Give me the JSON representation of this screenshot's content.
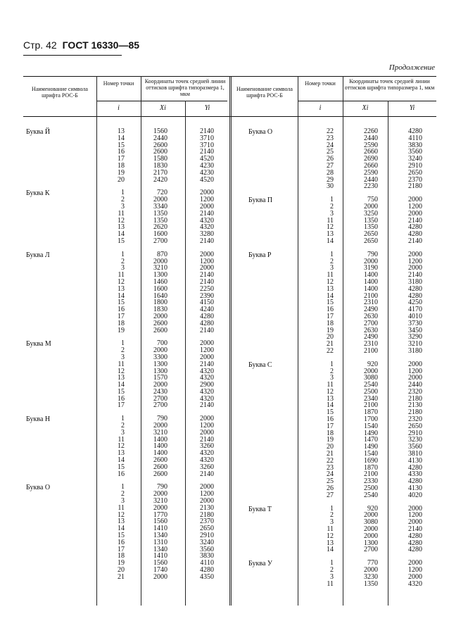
{
  "header": {
    "page": "Стр. 42",
    "standard": "ГОСТ 16330—85"
  },
  "continuation": "Продолжение",
  "table_header": {
    "name": "Наименование символа шрифта РОС-Б",
    "point_number": "Номер точки",
    "coords": "Координаты точек средней линии оттисков шрифта типоразмера 1, мкм",
    "i": "i",
    "x": "Xi",
    "y": "Yi"
  },
  "left_sections": [
    {
      "name": "Буква Й",
      "rows": [
        [
          "13",
          "1560",
          "2140"
        ],
        [
          "14",
          "2440",
          "3710"
        ],
        [
          "15",
          "2600",
          "3710"
        ],
        [
          "16",
          "2600",
          "2140"
        ],
        [
          "17",
          "1580",
          "4520"
        ],
        [
          "18",
          "1830",
          "4230"
        ],
        [
          "19",
          "2170",
          "4230"
        ],
        [
          "20",
          "2420",
          "4520"
        ]
      ]
    },
    {
      "name": "Буква К",
      "rows": [
        [
          "1",
          "720",
          "2000"
        ],
        [
          "2",
          "2000",
          "1200"
        ],
        [
          "3",
          "3340",
          "2000"
        ],
        [
          "11",
          "1350",
          "2140"
        ],
        [
          "12",
          "1350",
          "4320"
        ],
        [
          "13",
          "2620",
          "4320"
        ],
        [
          "14",
          "1600",
          "3280"
        ],
        [
          "15",
          "2700",
          "2140"
        ]
      ]
    },
    {
      "name": "Буква Л",
      "rows": [
        [
          "1",
          "870",
          "2000"
        ],
        [
          "2",
          "2000",
          "1200"
        ],
        [
          "3",
          "3210",
          "2000"
        ],
        [
          "11",
          "1300",
          "2140"
        ],
        [
          "12",
          "1460",
          "2140"
        ],
        [
          "13",
          "1600",
          "2250"
        ],
        [
          "14",
          "1640",
          "2390"
        ],
        [
          "15",
          "1800",
          "4150"
        ],
        [
          "16",
          "1830",
          "4240"
        ],
        [
          "17",
          "2000",
          "4280"
        ],
        [
          "18",
          "2600",
          "4280"
        ],
        [
          "19",
          "2600",
          "2140"
        ]
      ]
    },
    {
      "name": "Буква М",
      "rows": [
        [
          "1",
          "700",
          "2000"
        ],
        [
          "2",
          "2000",
          "1200"
        ],
        [
          "3",
          "3300",
          "2000"
        ],
        [
          "11",
          "1300",
          "2140"
        ],
        [
          "12",
          "1300",
          "4320"
        ],
        [
          "13",
          "1570",
          "4320"
        ],
        [
          "14",
          "2000",
          "2900"
        ],
        [
          "15",
          "2430",
          "4320"
        ],
        [
          "16",
          "2700",
          "4320"
        ],
        [
          "17",
          "2700",
          "2140"
        ]
      ]
    },
    {
      "name": "Буква Н",
      "rows": [
        [
          "1",
          "790",
          "2000"
        ],
        [
          "2",
          "2000",
          "1200"
        ],
        [
          "3",
          "3210",
          "2000"
        ],
        [
          "11",
          "1400",
          "2140"
        ],
        [
          "12",
          "1400",
          "3260"
        ],
        [
          "13",
          "1400",
          "4320"
        ],
        [
          "14",
          "2600",
          "4320"
        ],
        [
          "15",
          "2600",
          "3260"
        ],
        [
          "16",
          "2600",
          "2140"
        ]
      ]
    },
    {
      "name": "Буква О",
      "rows": [
        [
          "1",
          "790",
          "2000"
        ],
        [
          "2",
          "2000",
          "1200"
        ],
        [
          "3",
          "3210",
          "2000"
        ],
        [
          "11",
          "2000",
          "2130"
        ],
        [
          "12",
          "1770",
          "2180"
        ],
        [
          "13",
          "1560",
          "2370"
        ],
        [
          "14",
          "1410",
          "2650"
        ],
        [
          "15",
          "1340",
          "2910"
        ],
        [
          "16",
          "1310",
          "3240"
        ],
        [
          "17",
          "1340",
          "3560"
        ],
        [
          "18",
          "1410",
          "3830"
        ],
        [
          "19",
          "1560",
          "4110"
        ],
        [
          "20",
          "1740",
          "4280"
        ],
        [
          "21",
          "2000",
          "4350"
        ]
      ]
    }
  ],
  "right_sections": [
    {
      "name": "Буква О",
      "rows": [
        [
          "22",
          "2260",
          "4280"
        ],
        [
          "23",
          "2440",
          "4110"
        ],
        [
          "24",
          "2590",
          "3830"
        ],
        [
          "25",
          "2660",
          "3560"
        ],
        [
          "26",
          "2690",
          "3240"
        ],
        [
          "27",
          "2660",
          "2910"
        ],
        [
          "28",
          "2590",
          "2650"
        ],
        [
          "29",
          "2440",
          "2370"
        ],
        [
          "30",
          "2230",
          "2180"
        ]
      ]
    },
    {
      "name": "Буква П",
      "rows": [
        [
          "1",
          "750",
          "2000"
        ],
        [
          "2",
          "2000",
          "1200"
        ],
        [
          "3",
          "3250",
          "2000"
        ],
        [
          "11",
          "1350",
          "2140"
        ],
        [
          "12",
          "1350",
          "4280"
        ],
        [
          "13",
          "2650",
          "4280"
        ],
        [
          "14",
          "2650",
          "2140"
        ]
      ]
    },
    {
      "name": "Буква Р",
      "rows": [
        [
          "1",
          "790",
          "2000"
        ],
        [
          "2",
          "2000",
          "1200"
        ],
        [
          "3",
          "3190",
          "2000"
        ],
        [
          "11",
          "1400",
          "2140"
        ],
        [
          "12",
          "1400",
          "3180"
        ],
        [
          "13",
          "1400",
          "4280"
        ],
        [
          "14",
          "2100",
          "4280"
        ],
        [
          "15",
          "2310",
          "4250"
        ],
        [
          "16",
          "2490",
          "4170"
        ],
        [
          "17",
          "2630",
          "4010"
        ],
        [
          "18",
          "2700",
          "3730"
        ],
        [
          "19",
          "2630",
          "3450"
        ],
        [
          "20",
          "2490",
          "3290"
        ],
        [
          "21",
          "2310",
          "3210"
        ],
        [
          "22",
          "2100",
          "3180"
        ]
      ]
    },
    {
      "name": "Буква С",
      "rows": [
        [
          "1",
          "920",
          "2000"
        ],
        [
          "2",
          "2000",
          "1200"
        ],
        [
          "3",
          "3080",
          "2000"
        ],
        [
          "11",
          "2540",
          "2440"
        ],
        [
          "12",
          "2500",
          "2320"
        ],
        [
          "13",
          "2340",
          "2180"
        ],
        [
          "14",
          "2100",
          "2130"
        ],
        [
          "15",
          "1870",
          "2180"
        ],
        [
          "16",
          "1700",
          "2320"
        ],
        [
          "17",
          "1540",
          "2650"
        ],
        [
          "18",
          "1490",
          "2910"
        ],
        [
          "19",
          "1470",
          "3230"
        ],
        [
          "20",
          "1490",
          "3560"
        ],
        [
          "21",
          "1540",
          "3810"
        ],
        [
          "22",
          "1690",
          "4130"
        ],
        [
          "23",
          "1870",
          "4280"
        ],
        [
          "24",
          "2100",
          "4330"
        ],
        [
          "25",
          "2330",
          "4280"
        ],
        [
          "26",
          "2500",
          "4130"
        ],
        [
          "27",
          "2540",
          "4020"
        ]
      ]
    },
    {
      "name": "Буква Т",
      "rows": [
        [
          "1",
          "920",
          "2000"
        ],
        [
          "2",
          "2000",
          "1200"
        ],
        [
          "3",
          "3080",
          "2000"
        ],
        [
          "11",
          "2000",
          "2140"
        ],
        [
          "12",
          "2000",
          "4280"
        ],
        [
          "13",
          "1300",
          "4280"
        ],
        [
          "14",
          "2700",
          "4280"
        ]
      ]
    },
    {
      "name": "Буква У",
      "rows": [
        [
          "1",
          "770",
          "2000"
        ],
        [
          "2",
          "2000",
          "1200"
        ],
        [
          "3",
          "3230",
          "2000"
        ],
        [
          "11",
          "1350",
          "4320"
        ]
      ]
    }
  ]
}
